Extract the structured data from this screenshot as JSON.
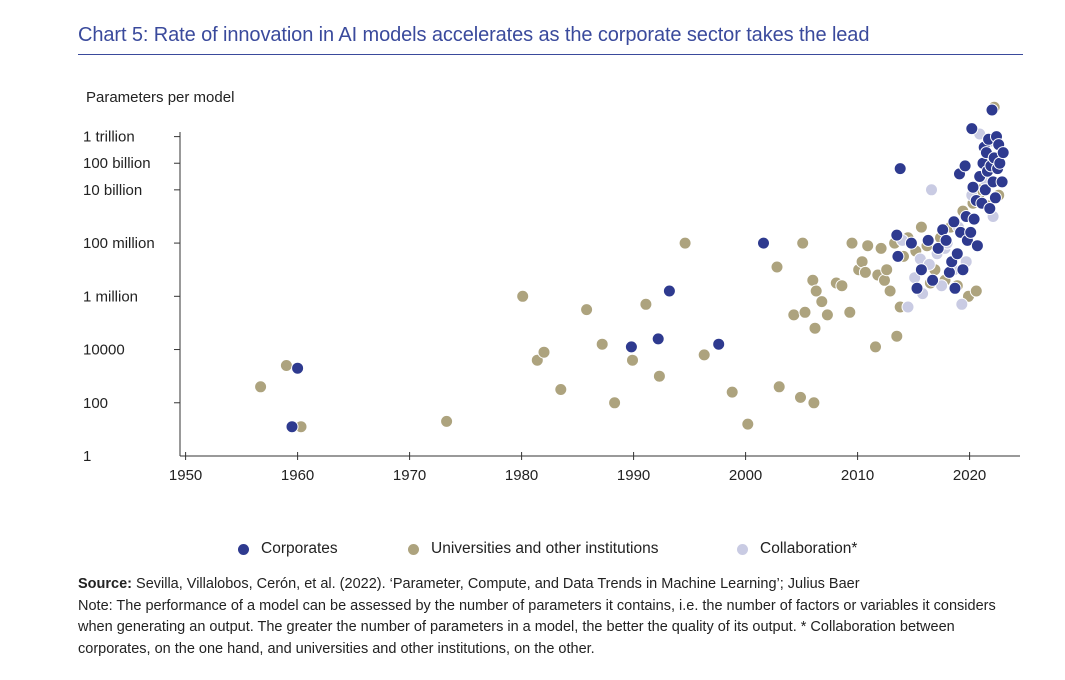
{
  "header": {
    "title": "Chart 5: Rate of innovation in AI models accelerates as the corporate sector takes the lead"
  },
  "chart_data": {
    "type": "scatter",
    "title": "Chart 5: Rate of innovation in AI models accelerates as the corporate sector takes the lead",
    "ylabel": "Parameters per model",
    "xlabel": "",
    "y_scale": "log10",
    "xlim": [
      1949.5,
      2024.5
    ],
    "ylim_log10": [
      0,
      13
    ],
    "x_ticks": [
      1950,
      1960,
      1970,
      1980,
      1990,
      2000,
      2010,
      2020
    ],
    "x_tick_labels": [
      "1950",
      "1960",
      "1970",
      "1980",
      "1990",
      "2000",
      "2010",
      "2020"
    ],
    "y_ticks_log10": [
      0,
      2,
      4,
      6,
      8,
      10,
      11,
      12
    ],
    "y_tick_labels": [
      "1",
      "100",
      "10000",
      "1 million",
      "100 million",
      "10 billion",
      "100 billion",
      "1 trillion"
    ],
    "colors": {
      "corporates": "#2e3a8f",
      "universities": "#ada37e",
      "collaboration": "#c9cbe3"
    },
    "legend_position": "bottom-center",
    "series": [
      {
        "name": "Corporates",
        "key": "corporates",
        "points": [
          [
            1960,
            3.3
          ],
          [
            1959.5,
            1.1
          ],
          [
            1989.8,
            4.1
          ],
          [
            1992.2,
            4.4
          ],
          [
            1993.2,
            6.2
          ],
          [
            1997.6,
            4.2
          ],
          [
            2001.6,
            8.0
          ],
          [
            2013.6,
            7.5
          ],
          [
            2013.5,
            8.3
          ],
          [
            2013.8,
            10.8
          ],
          [
            2014.8,
            8.0
          ],
          [
            2015.3,
            6.3
          ],
          [
            2015.7,
            7.0
          ],
          [
            2016.3,
            8.1
          ],
          [
            2016.7,
            6.6
          ],
          [
            2017.2,
            7.8
          ],
          [
            2017.6,
            8.5
          ],
          [
            2017.9,
            8.1
          ],
          [
            2018.2,
            6.9
          ],
          [
            2018.4,
            7.3
          ],
          [
            2018.6,
            8.8
          ],
          [
            2018.7,
            6.3
          ],
          [
            2018.9,
            7.6
          ],
          [
            2019.1,
            10.6
          ],
          [
            2019.2,
            8.4
          ],
          [
            2019.4,
            7.0
          ],
          [
            2019.6,
            10.9
          ],
          [
            2019.7,
            9.0
          ],
          [
            2019.8,
            8.1
          ],
          [
            2020.1,
            8.4
          ],
          [
            2020.2,
            12.3
          ],
          [
            2020.3,
            10.1
          ],
          [
            2020.4,
            8.9
          ],
          [
            2020.6,
            9.6
          ],
          [
            2020.7,
            7.9
          ],
          [
            2020.9,
            10.5
          ],
          [
            2021.1,
            9.5
          ],
          [
            2021.2,
            11.0
          ],
          [
            2021.3,
            11.6
          ],
          [
            2021.4,
            10.0
          ],
          [
            2021.5,
            11.4
          ],
          [
            2021.6,
            10.7
          ],
          [
            2021.7,
            11.9
          ],
          [
            2021.8,
            9.3
          ],
          [
            2021.9,
            10.9
          ],
          [
            2022.0,
            13.0
          ],
          [
            2022.1,
            10.3
          ],
          [
            2022.2,
            11.2
          ],
          [
            2022.3,
            9.7
          ],
          [
            2022.4,
            12.0
          ],
          [
            2022.5,
            10.8
          ],
          [
            2022.6,
            11.7
          ],
          [
            2022.7,
            11.0
          ],
          [
            2022.9,
            10.3
          ],
          [
            2023.0,
            11.4
          ]
        ]
      },
      {
        "name": "Universities and other institutions",
        "key": "universities",
        "points": [
          [
            1956.7,
            2.6
          ],
          [
            1959,
            3.4
          ],
          [
            1960.3,
            1.1
          ],
          [
            1973.3,
            1.3
          ],
          [
            1980.1,
            6.0
          ],
          [
            1981.4,
            3.6
          ],
          [
            1982,
            3.9
          ],
          [
            1983.5,
            2.5
          ],
          [
            1985.8,
            5.5
          ],
          [
            1987.2,
            4.2
          ],
          [
            1988.3,
            2.0
          ],
          [
            1989.9,
            3.6
          ],
          [
            1991.1,
            5.7
          ],
          [
            1992.3,
            3.0
          ],
          [
            1994.6,
            8.0
          ],
          [
            1996.3,
            3.8
          ],
          [
            1998.8,
            2.4
          ],
          [
            2000.2,
            1.2
          ],
          [
            2002.8,
            7.1
          ],
          [
            2003,
            2.6
          ],
          [
            2004.3,
            5.3
          ],
          [
            2004.9,
            2.2
          ],
          [
            2005.1,
            8.0
          ],
          [
            2005.3,
            5.4
          ],
          [
            2006.0,
            6.6
          ],
          [
            2006.1,
            2.0
          ],
          [
            2006.2,
            4.8
          ],
          [
            2006.3,
            6.2
          ],
          [
            2006.8,
            5.8
          ],
          [
            2007.3,
            5.3
          ],
          [
            2008.1,
            6.5
          ],
          [
            2008.6,
            6.4
          ],
          [
            2009.3,
            5.4
          ],
          [
            2009.5,
            8.0
          ],
          [
            2010.1,
            7.0
          ],
          [
            2010.4,
            7.3
          ],
          [
            2010.7,
            6.9
          ],
          [
            2010.9,
            7.9
          ],
          [
            2011.6,
            4.1
          ],
          [
            2011.8,
            6.8
          ],
          [
            2012.1,
            7.8
          ],
          [
            2012.4,
            6.6
          ],
          [
            2012.6,
            7.0
          ],
          [
            2012.9,
            6.2
          ],
          [
            2013.3,
            8.0
          ],
          [
            2013.5,
            4.5
          ],
          [
            2013.8,
            5.6
          ],
          [
            2014.1,
            7.5
          ],
          [
            2014.5,
            8.2
          ],
          [
            2015.2,
            7.7
          ],
          [
            2015.7,
            8.6
          ],
          [
            2016.2,
            7.9
          ],
          [
            2016.5,
            6.5
          ],
          [
            2016.9,
            7.0
          ],
          [
            2017.4,
            8.2
          ],
          [
            2017.8,
            6.6
          ],
          [
            2018.3,
            8.6
          ],
          [
            2018.9,
            6.4
          ],
          [
            2019.4,
            9.2
          ],
          [
            2019.9,
            6.0
          ],
          [
            2020.3,
            9.5
          ],
          [
            2020.6,
            6.2
          ],
          [
            2020.8,
            9.7
          ],
          [
            2021.0,
            10.0
          ],
          [
            2021.6,
            9.4
          ],
          [
            2022.2,
            13.1
          ],
          [
            2022.6,
            9.8
          ]
        ]
      },
      {
        "name": "Collaboration*",
        "key": "collaboration",
        "points": [
          [
            2014.0,
            8.1
          ],
          [
            2014.5,
            5.6
          ],
          [
            2015.1,
            6.7
          ],
          [
            2015.6,
            7.4
          ],
          [
            2015.8,
            6.1
          ],
          [
            2016.4,
            7.2
          ],
          [
            2016.6,
            10.0
          ],
          [
            2017.1,
            7.6
          ],
          [
            2017.5,
            6.4
          ],
          [
            2017.8,
            7.8
          ],
          [
            2018.0,
            8.0
          ],
          [
            2018.6,
            7.0
          ],
          [
            2019.0,
            8.6
          ],
          [
            2019.3,
            5.7
          ],
          [
            2019.7,
            7.3
          ],
          [
            2020.2,
            9.8
          ],
          [
            2020.9,
            12.1
          ],
          [
            2021.3,
            10.4
          ],
          [
            2021.7,
            11.8
          ],
          [
            2022.1,
            9.0
          ]
        ]
      }
    ]
  },
  "footer": {
    "source_label": "Source:",
    "source_text": "Sevilla, Villalobos, Cerón, et al. (2022). ‘Parameter, Compute, and Data Trends in Machine Learning’; Julius Baer",
    "note": "Note: The performance of a model can be assessed by the number of parameters it contains, i.e. the number of factors or variables it considers when generating an output. The greater the number of parameters in a model, the better the quality of its output. * Collaboration between corporates, on the one hand, and universities and other institutions, on the other."
  }
}
